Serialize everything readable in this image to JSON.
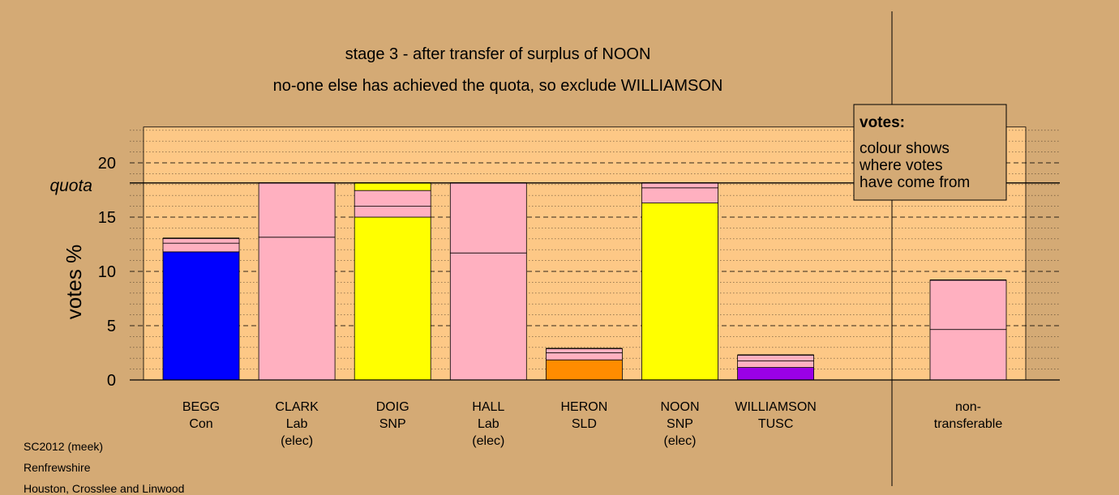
{
  "chart_data": {
    "type": "bar",
    "stacked": true,
    "title": "stage 3 - after transfer of surplus of NOON",
    "subtitle": "no-one else has achieved the quota, so exclude WILLIAMSON",
    "ylabel": "votes %",
    "ylim": [
      0,
      23.3
    ],
    "yticks": [
      0,
      5,
      10,
      15,
      20
    ],
    "quota": 18.15,
    "quota_label": "quota",
    "grid": true,
    "legend": {
      "position": "top-right",
      "title": "votes:",
      "lines": [
        "colour shows",
        "where votes",
        "have come from"
      ]
    },
    "colors": {
      "background": "#d4aa75",
      "plot_area": "#fdc886",
      "Con": "#0000ff",
      "Lab": "#ffb0c0",
      "SNP": "#ffff00",
      "SLD": "#ff8c00",
      "TUSC": "#9a00e6"
    },
    "categories": [
      {
        "lines": [
          "BEGG",
          "Con"
        ],
        "segments": [
          {
            "value": 11.8,
            "color": "#0000ff"
          },
          {
            "value": 0.8,
            "color": "#ffb0c0"
          },
          {
            "value": 0.45,
            "color": "#ffb0c0"
          }
        ]
      },
      {
        "lines": [
          "CLARK",
          "Lab",
          "(elec)"
        ],
        "segments": [
          {
            "value": 13.15,
            "color": "#ffb0c0"
          },
          {
            "value": 5.0,
            "color": "#ffb0c0"
          }
        ]
      },
      {
        "lines": [
          "DOIG",
          "SNP"
        ],
        "segments": [
          {
            "value": 15.0,
            "color": "#ffff00"
          },
          {
            "value": 1.0,
            "color": "#ffb0c0"
          },
          {
            "value": 1.45,
            "color": "#ffb0c0"
          },
          {
            "value": 0.7,
            "color": "#ffff00"
          }
        ]
      },
      {
        "lines": [
          "HALL",
          "Lab",
          "(elec)"
        ],
        "segments": [
          {
            "value": 11.7,
            "color": "#ffb0c0"
          },
          {
            "value": 6.45,
            "color": "#ffb0c0"
          }
        ]
      },
      {
        "lines": [
          "HERON",
          "SLD"
        ],
        "segments": [
          {
            "value": 1.85,
            "color": "#ff8c00"
          },
          {
            "value": 0.65,
            "color": "#ffb0c0"
          },
          {
            "value": 0.4,
            "color": "#ffb0c0"
          }
        ]
      },
      {
        "lines": [
          "NOON",
          "SNP",
          "(elec)"
        ],
        "segments": [
          {
            "value": 16.3,
            "color": "#ffff00"
          },
          {
            "value": 1.4,
            "color": "#ffb0c0"
          },
          {
            "value": 0.45,
            "color": "#ffb0c0"
          }
        ]
      },
      {
        "lines": [
          "WILLIAMSON",
          "TUSC"
        ],
        "segments": [
          {
            "value": 1.15,
            "color": "#9a00e6"
          },
          {
            "value": 0.6,
            "color": "#ffb0c0"
          },
          {
            "value": 0.55,
            "color": "#ffb0c0"
          }
        ]
      }
    ],
    "nontransferable": {
      "lines": [
        "non-",
        "transferable"
      ],
      "segments": [
        {
          "value": 4.65,
          "color": "#ffb0c0"
        },
        {
          "value": 4.55,
          "color": "#ffb0c0"
        }
      ]
    }
  },
  "footer": {
    "line1": "SC2012 (meek)",
    "line2": "Renfrewshire",
    "line3": "Houston, Crosslee and Linwood"
  }
}
